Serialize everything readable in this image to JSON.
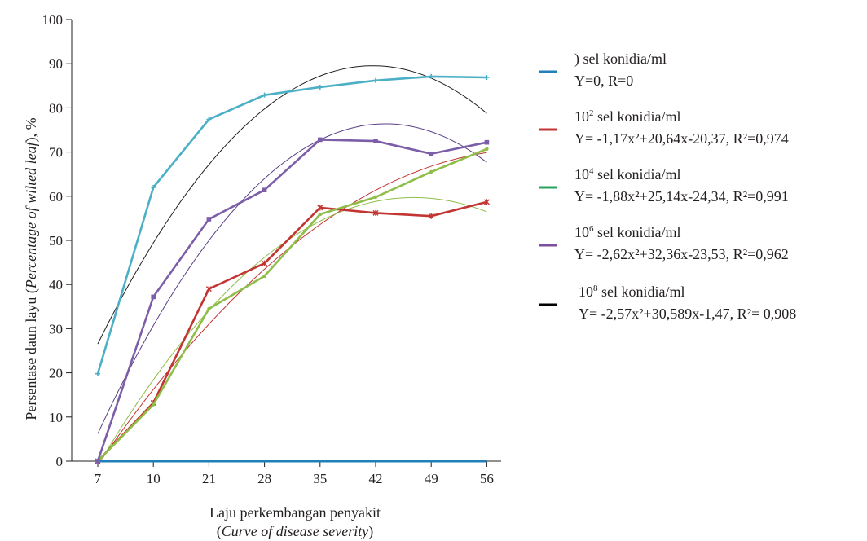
{
  "chart_data": {
    "type": "line",
    "title": "",
    "ylabel": {
      "part1": "Persentase daun layu (",
      "italic": "Percentage of wilted leaf",
      "part2": "), %"
    },
    "xlabel": {
      "line1": "Laju perkembangan penyakit",
      "line2_open": "(",
      "line2_italic": "Curve of disease severity",
      "line2_close": ")"
    },
    "categories": [
      "7",
      "10",
      "21",
      "28",
      "35",
      "42",
      "49",
      "56"
    ],
    "yticks": [
      "0",
      "10",
      "20",
      "30",
      "40",
      "50",
      "60",
      "70",
      "80",
      "90",
      "100"
    ],
    "ylim": [
      0,
      100
    ],
    "grid": false,
    "legend_position": "right",
    "series": [
      {
        "color": "#1f7fb8",
        "values": [
          0,
          0,
          0,
          0,
          0,
          0,
          0,
          0
        ],
        "trend": null,
        "legend": {
          "l1_pre": ") sel konidia/ml",
          "l1_sup": "",
          "l1_post": "",
          "l2": "Y=0, R=0"
        }
      },
      {
        "color": "#c33532",
        "values": [
          0,
          13.2,
          39,
          44.8,
          57.4,
          56.2,
          55.5,
          58.7
        ],
        "trend": [
          -1.17,
          20.64,
          -20.37
        ],
        "legend": {
          "l1_pre": "10",
          "l1_sup": "2",
          "l1_post": " sel konidia/ml",
          "l2": "Y= -1,17x²+20,64x-20,37, R²=0,974"
        }
      },
      {
        "color": "#8fbd48",
        "values": [
          0,
          12.8,
          34.5,
          41.9,
          55.9,
          59.8,
          65.5,
          70.7
        ],
        "trend": [
          -1.88,
          25.14,
          -24.34
        ],
        "legend": {
          "l1_pre": "10",
          "l1_sup": "4",
          "l1_post": " sel konidia/ml",
          "l2": "Y= -1,88x²+25,14x-24,34, R²=0,991"
        }
      },
      {
        "color": "#7b5ea7",
        "values": [
          0,
          37.2,
          54.8,
          61.4,
          72.8,
          72.5,
          69.6,
          72.2
        ],
        "trend": [
          -2.62,
          32.36,
          -23.53
        ],
        "legend": {
          "l1_pre": "10",
          "l1_sup": "6",
          "l1_post": " sel konidia/ml",
          "l2": "Y= -2,62x²+32,36x-23,53, R²=0,962"
        }
      },
      {
        "color": "#4bafc6",
        "values": [
          19.8,
          62,
          77.4,
          82.9,
          84.7,
          86.2,
          87.1,
          86.9
        ],
        "trend": [
          -2.57,
          30.589,
          -1.47
        ],
        "legend": {
          "l1_pre": "10",
          "l1_sup": "8",
          "l1_post": " sel konidia/ml",
          "l2": "Y= -2,57x²+30,589x-1,47, R²= 0,908"
        }
      }
    ],
    "legend_swatch_colors": [
      "#1f7fb8",
      "#c33532",
      "#27a35f",
      "#7b4fa0",
      "#000000"
    ]
  }
}
